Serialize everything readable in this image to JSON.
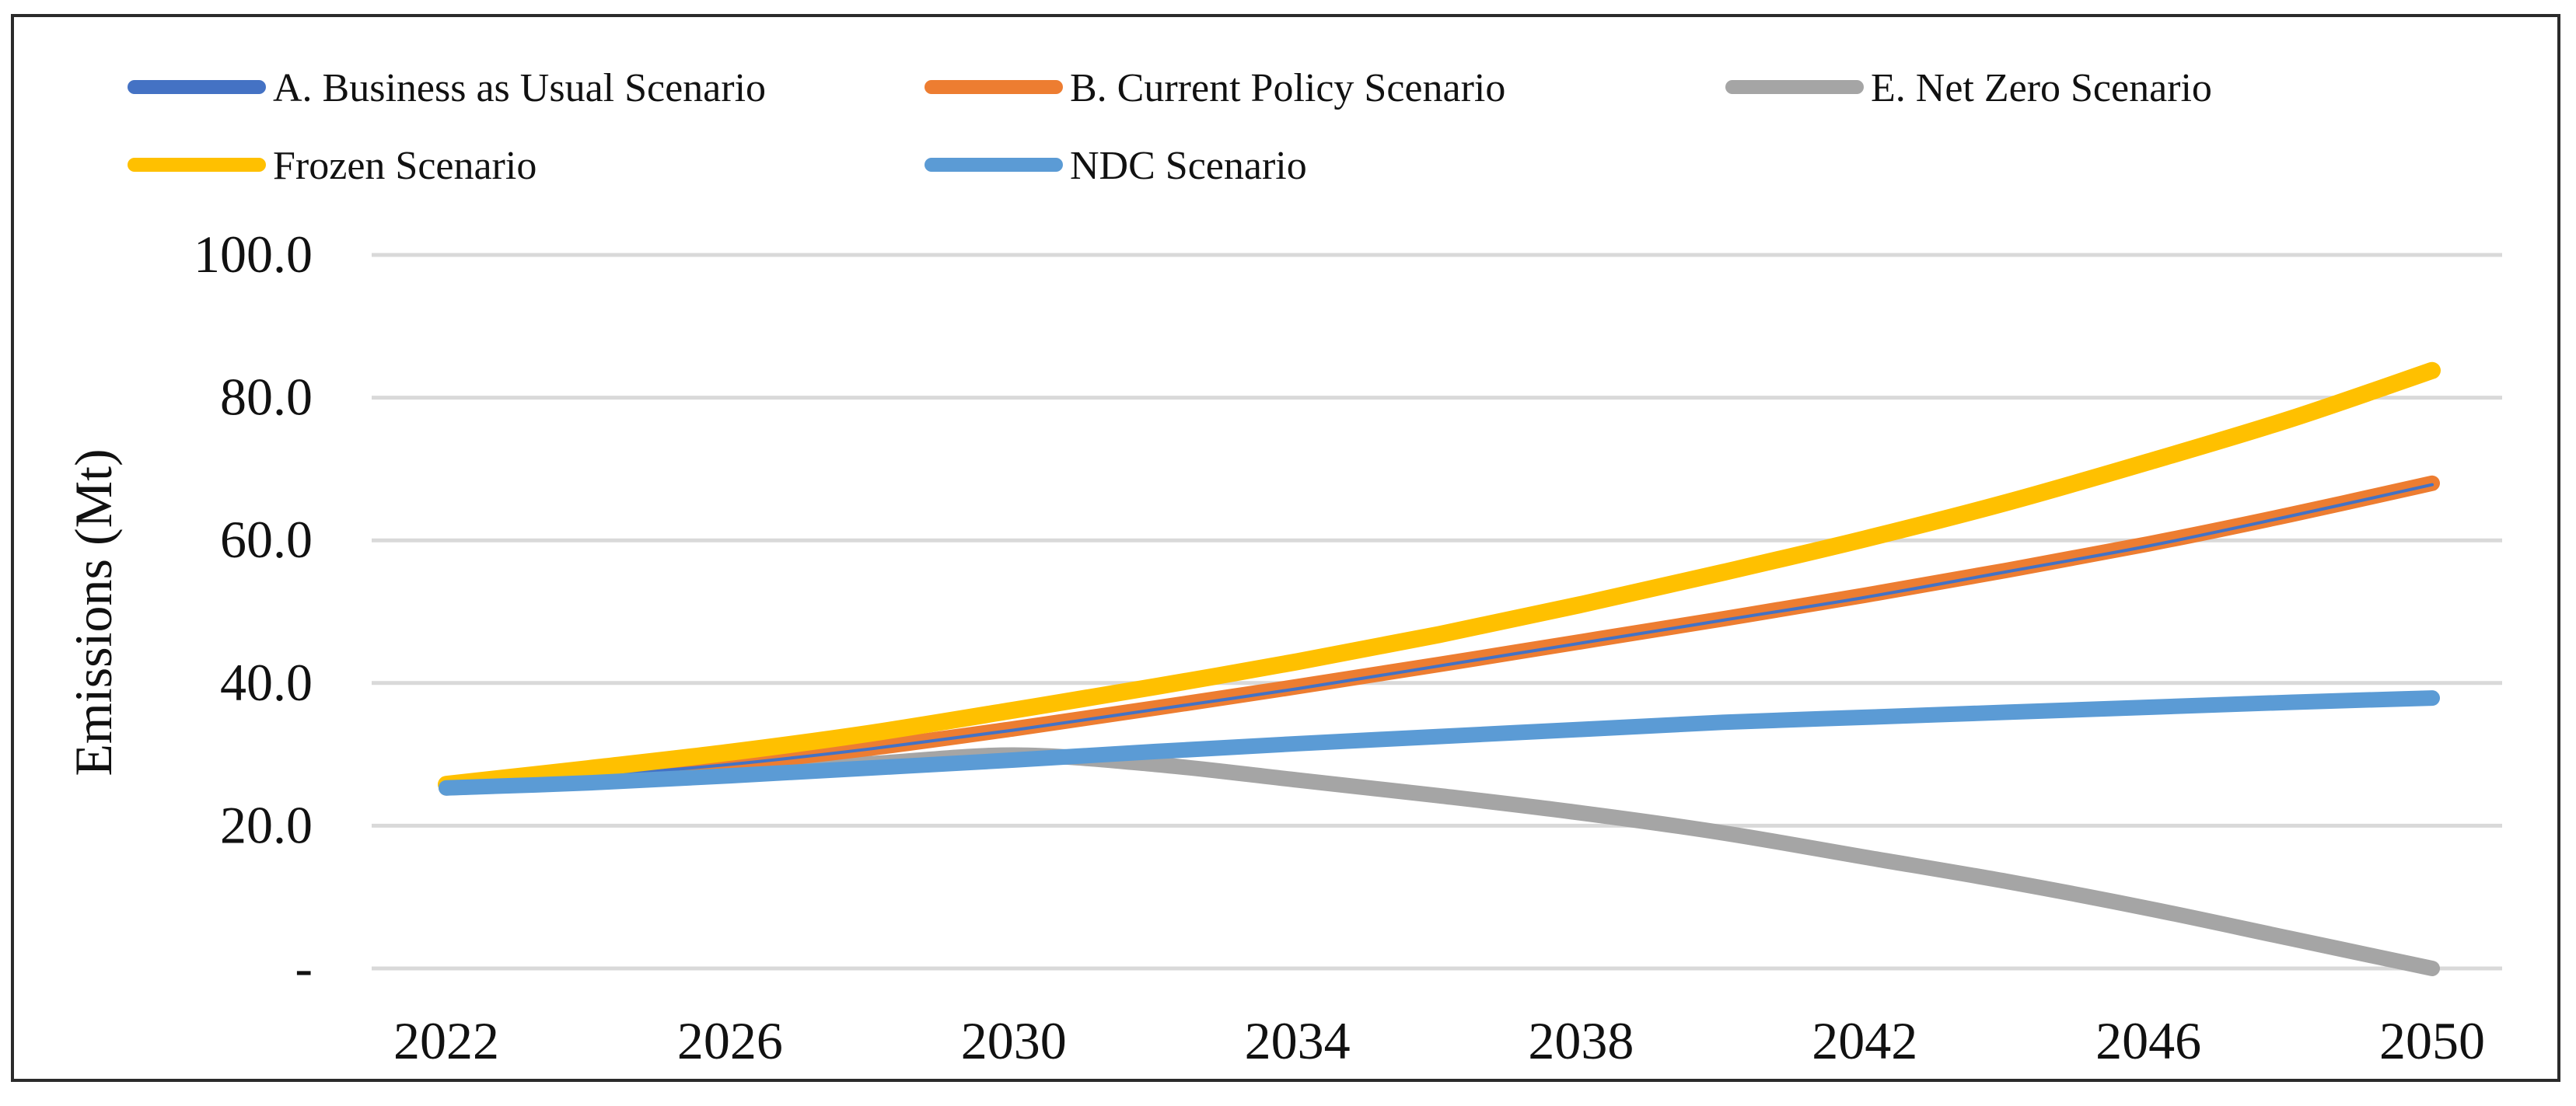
{
  "chart_data": {
    "type": "line",
    "title": "",
    "xlabel": "",
    "ylabel": "Emissions (Mt)",
    "x": [
      2022,
      2024,
      2026,
      2028,
      2030,
      2032,
      2034,
      2036,
      2038,
      2040,
      2042,
      2044,
      2046,
      2048,
      2050
    ],
    "x_ticks": [
      2022,
      2026,
      2030,
      2034,
      2038,
      2042,
      2046,
      2050
    ],
    "x_tick_labels": [
      "2022",
      "2026",
      "2030",
      "2034",
      "2038",
      "2042",
      "2046",
      "2050"
    ],
    "ylim": [
      0,
      100
    ],
    "y_ticks": [
      0,
      20,
      40,
      60,
      80,
      100
    ],
    "y_tick_labels": [
      "-",
      "20.0",
      "40.0",
      "60.0",
      "80.0",
      "100.0"
    ],
    "grid": true,
    "legend_position": "top",
    "series": [
      {
        "name": "A. Business as Usual Scenario",
        "color": "#4472C4",
        "values": [
          25.5,
          26.9,
          28.6,
          30.8,
          33.4,
          36.3,
          39.2,
          42.4,
          45.6,
          48.8,
          52.0,
          55.6,
          59.2,
          63.4,
          67.8
        ]
      },
      {
        "name": "B. Current Policy Scenario",
        "color": "#ED7D31",
        "values": [
          25.6,
          27.0,
          28.7,
          30.9,
          33.6,
          36.5,
          39.5,
          42.6,
          45.8,
          49.0,
          52.3,
          55.8,
          59.5,
          63.6,
          68.0
        ]
      },
      {
        "name": "E. Net Zero Scenario",
        "color": "#A5A5A5",
        "values": [
          25.3,
          26.2,
          27.6,
          28.7,
          29.9,
          28.6,
          26.4,
          24.2,
          21.8,
          19.0,
          15.6,
          12.2,
          8.4,
          4.2,
          0.0
        ]
      },
      {
        "name": "Frozen Scenario",
        "color": "#FFC000",
        "values": [
          25.8,
          28.0,
          30.3,
          33.0,
          36.2,
          39.5,
          43.0,
          46.8,
          51.0,
          55.5,
          60.2,
          65.3,
          71.0,
          77.0,
          83.8
        ]
      },
      {
        "name": "NDC Scenario",
        "color": "#5B9BD5",
        "values": [
          25.3,
          26.0,
          27.0,
          28.1,
          29.2,
          30.4,
          31.5,
          32.5,
          33.5,
          34.5,
          35.2,
          35.9,
          36.6,
          37.3,
          37.9
        ]
      }
    ]
  }
}
